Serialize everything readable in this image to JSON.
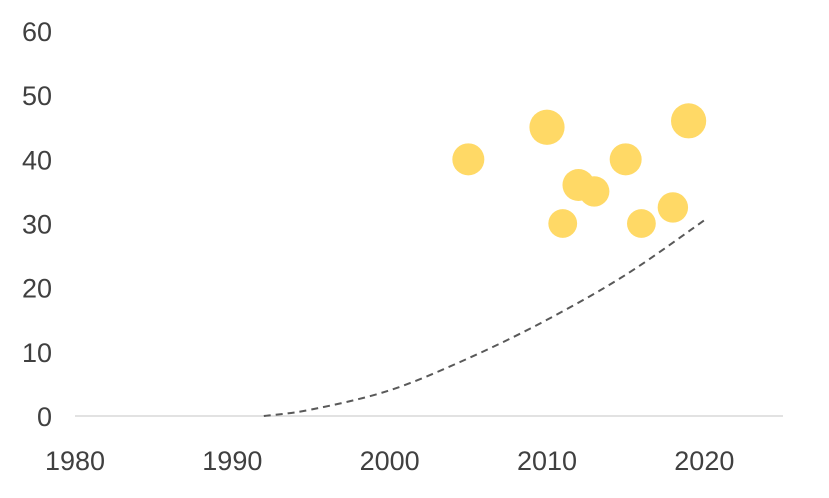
{
  "chart_data": {
    "type": "scatter",
    "title": "",
    "xlabel": "",
    "ylabel": "",
    "xlim": [
      1980,
      2025
    ],
    "ylim": [
      0,
      60
    ],
    "x_ticks": [
      1980,
      1990,
      2000,
      2010,
      2020
    ],
    "y_ticks": [
      0,
      10,
      20,
      30,
      40,
      50,
      60
    ],
    "x_tick_labels": [
      "1980",
      "1990",
      "2000",
      "2010",
      "2020"
    ],
    "y_tick_labels": [
      "0",
      "10",
      "20",
      "30",
      "40",
      "50",
      "60"
    ],
    "grid": false,
    "legend": "none",
    "series": [
      {
        "type": "bubble",
        "color": "#FFD966",
        "points": [
          {
            "x": 2005,
            "y": 40,
            "size": 1.0
          },
          {
            "x": 2010,
            "y": 45,
            "size": 1.1
          },
          {
            "x": 2011,
            "y": 30,
            "size": 0.9
          },
          {
            "x": 2012,
            "y": 36,
            "size": 1.0
          },
          {
            "x": 2013,
            "y": 35,
            "size": 0.95
          },
          {
            "x": 2015,
            "y": 40,
            "size": 1.0
          },
          {
            "x": 2016,
            "y": 30,
            "size": 0.9
          },
          {
            "x": 2018,
            "y": 32.5,
            "size": 0.95
          },
          {
            "x": 2019,
            "y": 46,
            "size": 1.1
          }
        ]
      },
      {
        "type": "trendline",
        "style": "dashed",
        "color": "#595959",
        "x": [
          1992,
          1995,
          2000,
          2005,
          2010,
          2015,
          2020
        ],
        "y": [
          0,
          1,
          4,
          9,
          15,
          22,
          30.5
        ]
      }
    ]
  }
}
